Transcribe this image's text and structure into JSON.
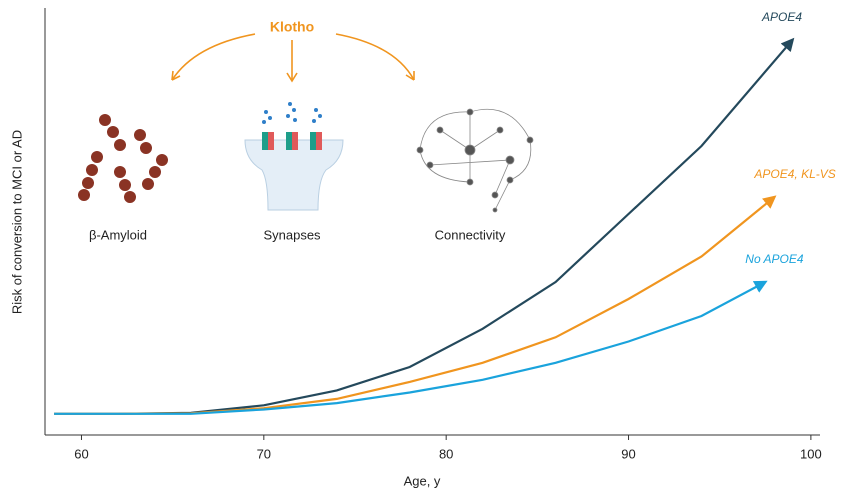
{
  "chart_data": {
    "type": "line",
    "x_label": "Age, y",
    "y_label": "Risk of conversion to MCI or AD",
    "xlim": [
      58,
      100.5
    ],
    "xticks": [
      60,
      70,
      80,
      90,
      100
    ],
    "ylim": [
      0,
      100
    ],
    "series": [
      {
        "name": "APOE4",
        "color": "#24495c",
        "x": [
          58.5,
          62,
          66,
          70,
          74,
          78,
          82,
          86,
          90,
          94,
          99
        ],
        "values": [
          5,
          5,
          5.2,
          7,
          10.5,
          16,
          25,
          36,
          52,
          68,
          93
        ]
      },
      {
        "name": "APOE4, KL-VS",
        "color": "#f0951f",
        "x": [
          58.5,
          62,
          66,
          70,
          74,
          78,
          82,
          86,
          90,
          94,
          98
        ],
        "values": [
          5,
          5,
          5.1,
          6.3,
          8.5,
          12.5,
          17,
          23,
          32,
          42,
          56
        ]
      },
      {
        "name": "No APOE4",
        "color": "#1aa3dc",
        "x": [
          58.5,
          62,
          66,
          70,
          74,
          78,
          82,
          86,
          90,
          94,
          97.5
        ],
        "values": [
          5,
          5,
          5,
          6,
          7.5,
          10,
          13,
          17,
          22,
          28,
          36
        ]
      }
    ],
    "annotations": {
      "source": "Klotho",
      "labels": [
        "β-Amyloid",
        "Synapses",
        "Connectivity"
      ]
    }
  }
}
